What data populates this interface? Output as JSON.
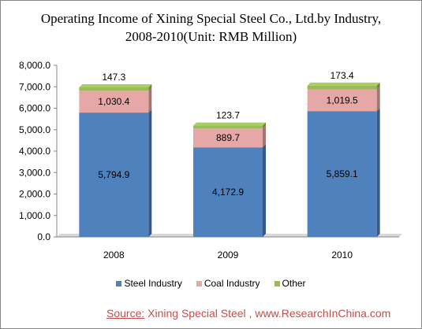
{
  "title_line1": "Operating Income of Xining Special Steel Co., Ltd.by Industry,",
  "title_line2": "2008-2010(Unit: RMB Million)",
  "source_label": "Source:",
  "source_text": "Xining Special Steel , www.ResearchInChina.com",
  "chart_data": {
    "type": "bar",
    "stacked": true,
    "categories": [
      "2008",
      "2009",
      "2010"
    ],
    "series": [
      {
        "name": "Steel Industry",
        "values": [
          5794.9,
          4172.9,
          5859.1
        ],
        "labels": [
          "5,794.9",
          "4,172.9",
          "5,859.1"
        ],
        "color": "#4f81bd"
      },
      {
        "name": "Coal Industry",
        "values": [
          1030.4,
          889.7,
          1019.5
        ],
        "labels": [
          "1,030.4",
          "889.7",
          "1,019.5"
        ],
        "color": "#e6a8a6"
      },
      {
        "name": "Other",
        "values": [
          147.3,
          123.7,
          173.4
        ],
        "labels": [
          "147.3",
          "123.7",
          "173.4"
        ],
        "color": "#9bbb59"
      }
    ],
    "y_ticks": [
      "0.0",
      "1,000.0",
      "2,000.0",
      "3,000.0",
      "4,000.0",
      "5,000.0",
      "6,000.0",
      "7,000.0",
      "8,000.0"
    ],
    "ylim": [
      0,
      8000
    ],
    "grid": false,
    "legend_position": "bottom"
  }
}
